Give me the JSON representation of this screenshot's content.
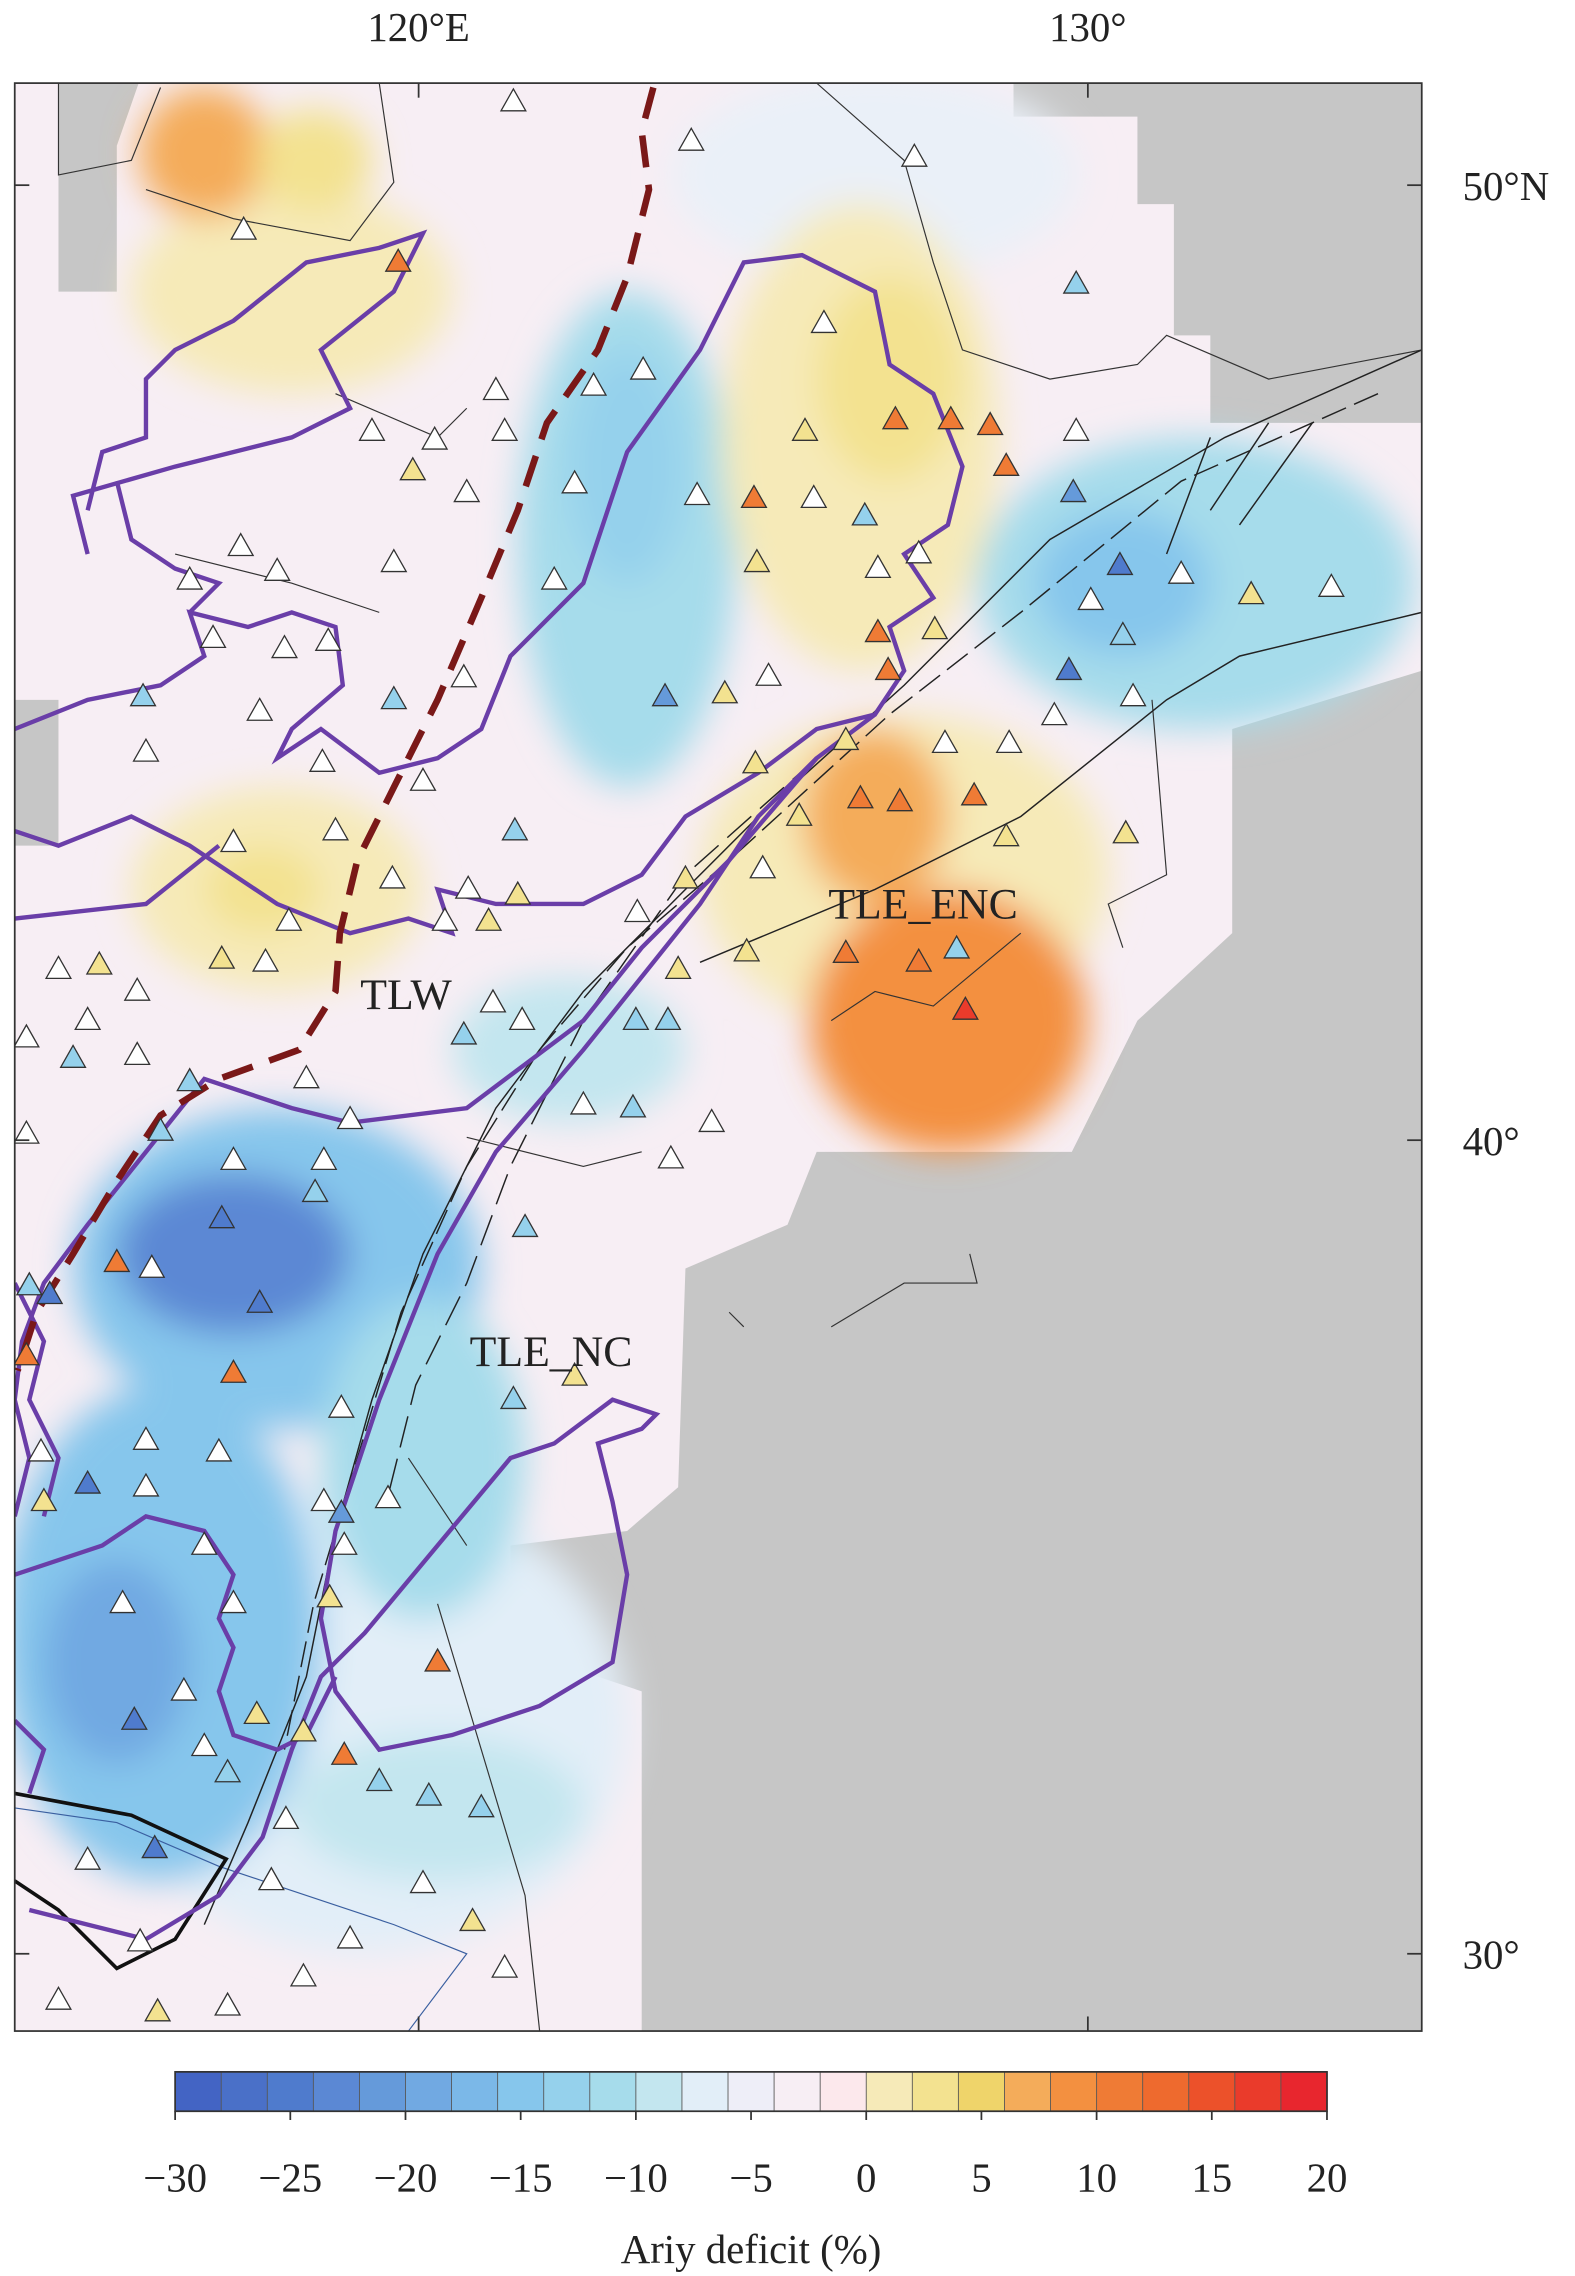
{
  "map": {
    "lon_labels": [
      "120°E",
      "130°"
    ],
    "lat_labels": [
      "50°N",
      "40°",
      "30°"
    ],
    "region_labels": [
      "TLW",
      "TLE_ENC",
      "TLE_NC"
    ]
  },
  "colorbar": {
    "label": "Ariy deficit (%)",
    "lim": [
      -30,
      20
    ],
    "ticks": [
      {
        "value": -30,
        "label": "−30"
      },
      {
        "value": -25,
        "label": "−25"
      },
      {
        "value": -20,
        "label": "−20"
      },
      {
        "value": -15,
        "label": "−15"
      },
      {
        "value": -10,
        "label": "−10"
      },
      {
        "value": -5,
        "label": "−5"
      },
      0,
      5,
      10,
      15,
      20
    ],
    "colors": [
      "#4364c4",
      "#4a70c8",
      "#4f7bcd",
      "#5b88d4",
      "#659ada",
      "#71a9e2",
      "#7bb8e8",
      "#86c6ec",
      "#95d1ec",
      "#a6dceb",
      "#c3e6ef",
      "#e2eef8",
      "#eeeef8",
      "#f7eef4",
      "#fce8ec",
      "#f6eab8",
      "#f3e290",
      "#efd46a",
      "#f4ac5a",
      "#f39040",
      "#ef7b35",
      "#ee6a2e",
      "#ec512a",
      "#ea3b2b",
      "#e8262e"
    ]
  }
}
